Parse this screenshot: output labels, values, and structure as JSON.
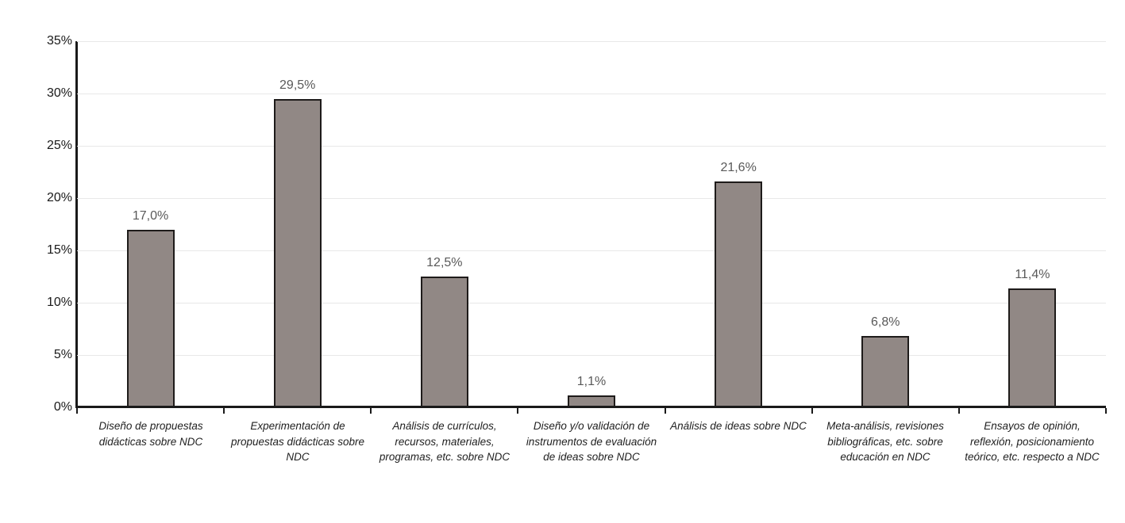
{
  "chart_data": {
    "type": "bar",
    "title": "",
    "xlabel": "",
    "ylabel": "",
    "categories": [
      "Diseño de propuestas didácticas sobre NDC",
      "Experimentación de propuestas didácticas sobre NDC",
      "Análisis de currículos, recursos, materiales, programas, etc. sobre NDC",
      "Diseño y/o validación de instrumentos de evaluación de ideas sobre NDC",
      "Análisis de ideas sobre NDC",
      "Meta-análisis, revisiones bibliográficas, etc. sobre educación en NDC",
      "Ensayos de opinión, reflexión, posicionamiento teórico, etc. respecto a NDC"
    ],
    "values": [
      17.0,
      29.5,
      12.5,
      1.1,
      21.6,
      6.8,
      11.4
    ],
    "value_labels": [
      "17,0%",
      "29,5%",
      "12,5%",
      "1,1%",
      "21,6%",
      "6,8%",
      "11,4%"
    ],
    "ylim": [
      0,
      35
    ],
    "ytick_step": 5,
    "ytick_labels": [
      "0%",
      "5%",
      "10%",
      "15%",
      "20%",
      "25%",
      "30%",
      "35%"
    ],
    "grid": "horizontal",
    "legend": "none",
    "colors": {
      "bar_fill": "#918885",
      "bar_border": "#1e1b1a",
      "gridline": "#e8e8e8",
      "axis": "#1a1a1a",
      "value_label": "#595959",
      "tick_label": "#1a1a1a",
      "category_label": "#1f1f1f",
      "background": "#ffffff"
    }
  }
}
